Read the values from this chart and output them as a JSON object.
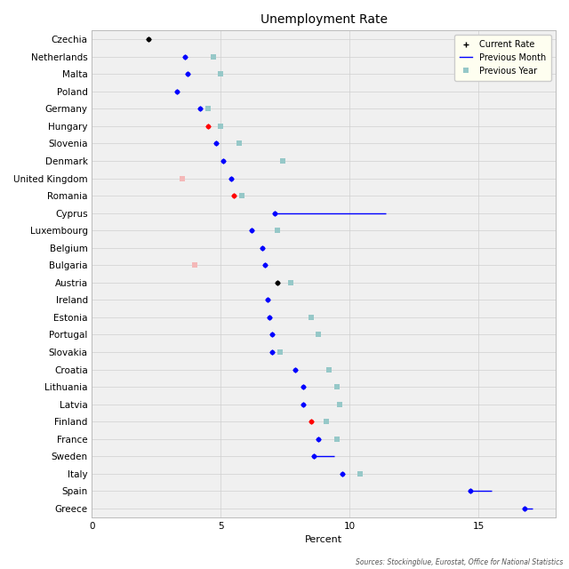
{
  "title": "Unemployment Rate",
  "xlabel": "Percent",
  "source": "Sources: Stockingblue, Eurostat, Office for National Statistics",
  "countries": [
    "Czechia",
    "Netherlands",
    "Malta",
    "Poland",
    "Germany",
    "Hungary",
    "Slovenia",
    "Denmark",
    "United Kingdom",
    "Romania",
    "Cyprus",
    "Luxembourg",
    "Belgium",
    "Bulgaria",
    "Austria",
    "Ireland",
    "Estonia",
    "Portugal",
    "Slovakia",
    "Croatia",
    "Lithuania",
    "Latvia",
    "Finland",
    "France",
    "Sweden",
    "Italy",
    "Spain",
    "Greece"
  ],
  "current_rate": [
    2.2,
    3.6,
    3.7,
    3.3,
    4.2,
    4.5,
    4.8,
    5.1,
    5.4,
    5.5,
    7.1,
    6.2,
    6.6,
    6.7,
    7.2,
    6.8,
    6.9,
    7.0,
    7.0,
    7.9,
    8.2,
    8.2,
    8.5,
    8.8,
    8.6,
    9.7,
    14.7,
    16.8
  ],
  "previous_month": [
    null,
    3.6,
    3.7,
    3.3,
    4.2,
    null,
    4.8,
    5.1,
    5.4,
    null,
    11.4,
    6.2,
    6.6,
    6.7,
    null,
    6.8,
    6.9,
    7.0,
    7.0,
    7.9,
    8.2,
    8.2,
    null,
    8.8,
    9.4,
    null,
    15.5,
    17.1
  ],
  "previous_year": [
    null,
    4.7,
    5.0,
    null,
    4.5,
    5.0,
    5.7,
    7.4,
    null,
    5.8,
    null,
    7.2,
    null,
    null,
    7.7,
    null,
    8.5,
    8.8,
    7.3,
    9.2,
    9.5,
    9.6,
    9.1,
    9.5,
    null,
    10.4,
    null,
    null
  ],
  "current_color": [
    "black",
    "blue",
    "blue",
    "blue",
    "blue",
    "red",
    "blue",
    "blue",
    "blue",
    "red",
    "blue",
    "blue",
    "blue",
    "blue",
    "black",
    "blue",
    "blue",
    "blue",
    "blue",
    "blue",
    "blue",
    "blue",
    "red",
    "blue",
    "blue",
    "blue",
    "blue",
    "blue"
  ],
  "special_prev_year": [
    {
      "country": "United Kingdom",
      "value": 3.5,
      "color": "#f4b8b8"
    },
    {
      "country": "Bulgaria",
      "value": 4.0,
      "color": "#f4b8b8"
    }
  ],
  "xlim": [
    0,
    18
  ],
  "xticks": [
    0,
    5,
    10,
    15
  ],
  "bg_color": "#f0f0f0",
  "grid_color": "#d0d0d0",
  "prev_year_color": "#96c8c8",
  "legend_bg": "#fefef0",
  "fig_width": 6.4,
  "fig_height": 6.4,
  "dpi": 100
}
